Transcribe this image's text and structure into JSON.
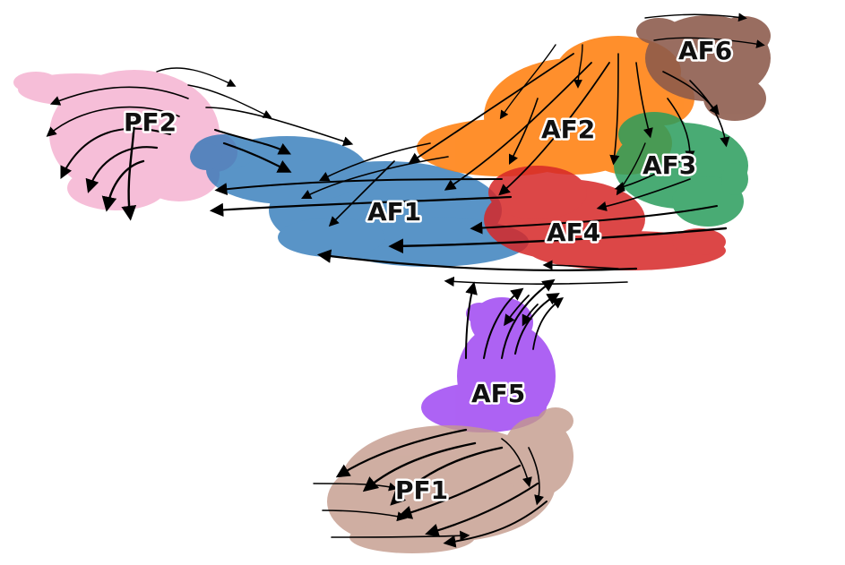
{
  "clusters": [
    {
      "id": "PF2",
      "label": "PF2",
      "color": "#f4a9cb"
    },
    {
      "id": "AF1",
      "label": "AF1",
      "color": "#2271b5"
    },
    {
      "id": "AF2",
      "label": "AF2",
      "color": "#ff8010"
    },
    {
      "id": "AF3",
      "label": "AF3",
      "color": "#2a9d5c"
    },
    {
      "id": "AF4",
      "label": "AF4",
      "color": "#d62728"
    },
    {
      "id": "AF5",
      "label": "AF5",
      "color": "#a24df2"
    },
    {
      "id": "AF6",
      "label": "AF6",
      "color": "#8c5a4b"
    },
    {
      "id": "PF1",
      "label": "PF1",
      "color": "#c49a8c"
    }
  ],
  "streamline_color": "#000000"
}
